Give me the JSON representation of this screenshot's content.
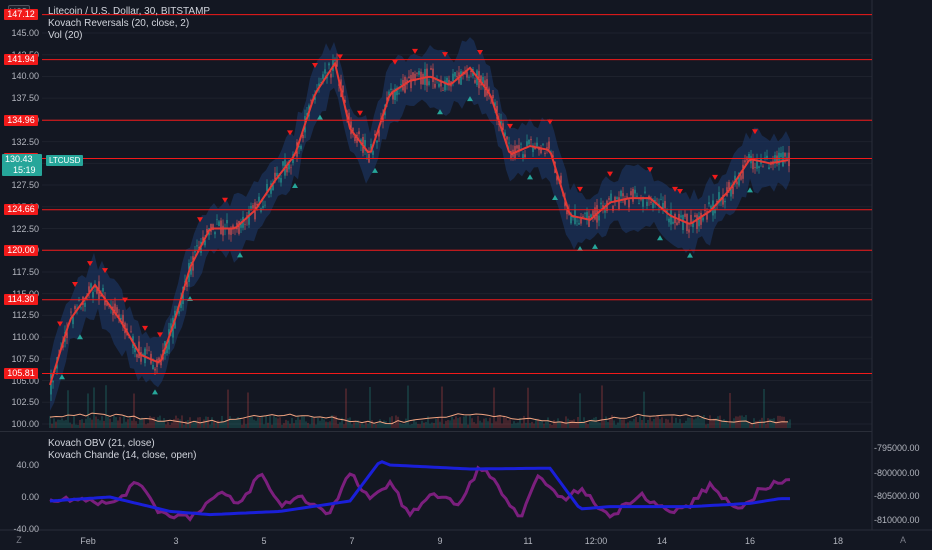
{
  "header": {
    "currency_badge": "USD",
    "main_legend": "Litecoin / U.S. Dollar, 30, BITSTAMP",
    "indicator_1": "Kovach Reversals (20, close, 2)",
    "indicator_2": "Vol (20)",
    "sub_indicator_1": "Kovach OBV (21, close)",
    "sub_indicator_2": "Kovach Chande (14, close, open)"
  },
  "price_axis": {
    "ticks": [
      "145.00",
      "142.50",
      "140.00",
      "137.50",
      "135.00",
      "132.50",
      "130.00",
      "127.50",
      "125.00",
      "122.50",
      "120.00",
      "117.50",
      "115.00",
      "112.50",
      "110.00",
      "107.50",
      "105.00",
      "102.50",
      "100.00"
    ],
    "current_price": "130.43",
    "countdown": "15:19",
    "symbol": "LTCUSD"
  },
  "horizontal_levels": [
    "147.12",
    "141.94",
    "134.96",
    "130.55",
    "124.66",
    "120.00",
    "114.30",
    "105.81"
  ],
  "oscillator_axis": {
    "left_ticks": [
      "40.00",
      "0.00",
      "-40.00"
    ],
    "right_ticks": [
      "-795000.00",
      "-800000.00",
      "-805000.00",
      "-810000.00"
    ]
  },
  "time_axis": {
    "ticks": [
      "Feb",
      "3",
      "5",
      "7",
      "9",
      "11",
      "12:00",
      "14",
      "16",
      "18"
    ]
  },
  "zoom_buttons": {
    "left": "Z",
    "right": "A"
  },
  "colors": {
    "background": "#131722",
    "level_line": "#f21a1a",
    "band_fill": "#1e3a6e",
    "ma_line": "#e53935",
    "down_marker": "#f21a1a",
    "up_marker": "#26a69a",
    "obv_line": "#1a1fd9",
    "chande_line": "#7b1f7d",
    "volume_ma": "#f4a582"
  }
}
